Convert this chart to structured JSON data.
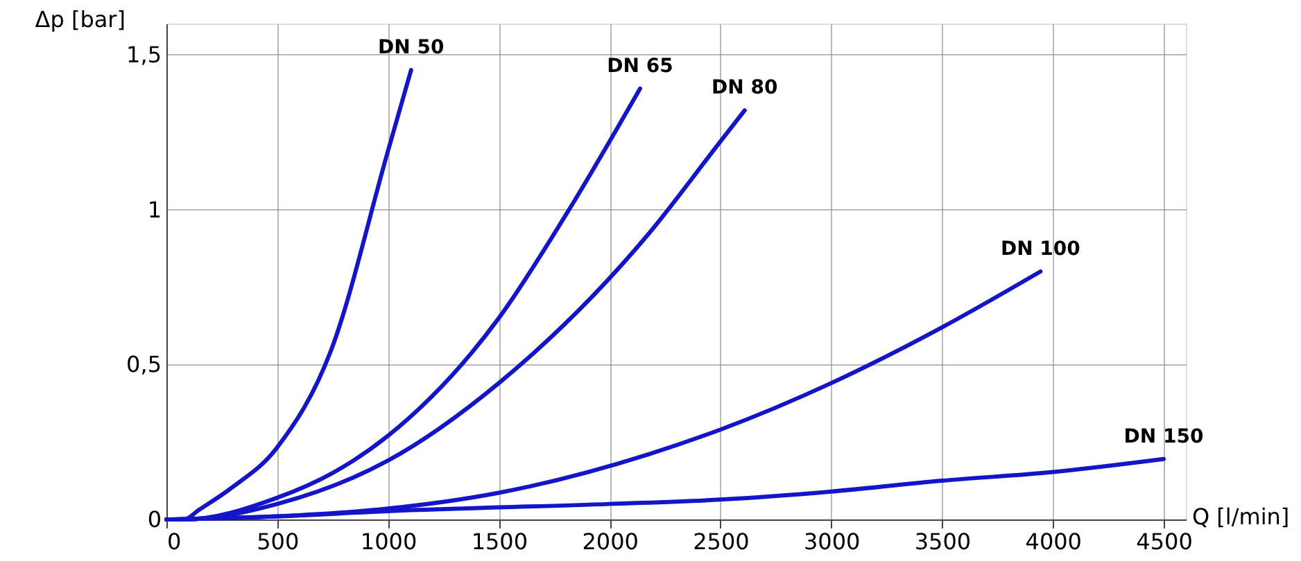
{
  "chart_data": {
    "type": "line",
    "xlabel": "Q [l/min]",
    "ylabel": "Δp [bar]",
    "xlim": [
      0,
      4600
    ],
    "ylim": [
      0,
      1.6
    ],
    "xticks": [
      0,
      500,
      1000,
      1500,
      2000,
      2500,
      3000,
      3500,
      4000,
      4500
    ],
    "yticks": [
      0,
      {
        "value": 0.5,
        "label": "0,5"
      },
      1,
      {
        "value": 1.5,
        "label": "1,5"
      }
    ],
    "grid": true,
    "line_style": "solid",
    "series": [
      {
        "name": "DN 50",
        "color": "#1414c8",
        "x": [
          0,
          80,
          145,
          290,
          497,
          745,
          1000,
          1104
        ],
        "values": [
          0,
          0,
          0.03,
          0.1,
          0.23,
          0.55,
          1.19,
          1.45
        ]
      },
      {
        "name": "DN 65",
        "color": "#1414c8",
        "x": [
          0,
          80,
          500,
          750,
          1000,
          1500,
          1800,
          2137
        ],
        "values": [
          0,
          0,
          0.07,
          0.15,
          0.27,
          0.65,
          0.98,
          1.39
        ]
      },
      {
        "name": "DN 80",
        "color": "#1414c8",
        "x": [
          0,
          80,
          500,
          1000,
          1500,
          2174,
          2500,
          2609
        ],
        "values": [
          0,
          0,
          0.05,
          0.19,
          0.44,
          0.92,
          1.22,
          1.32
        ]
      },
      {
        "name": "DN 100",
        "color": "#1414c8",
        "x": [
          0,
          500,
          1000,
          1500,
          2174,
          2500,
          3000,
          3500,
          3944
        ],
        "values": [
          0,
          0.01,
          0.035,
          0.086,
          0.21,
          0.29,
          0.44,
          0.62,
          0.8
        ]
      },
      {
        "name": "DN 150",
        "color": "#1414c8",
        "x": [
          0,
          500,
          1000,
          2000,
          2500,
          3000,
          3500,
          4000,
          4500
        ],
        "values": [
          0,
          0.01,
          0.027,
          0.05,
          0.064,
          0.09,
          0.125,
          0.153,
          0.195
        ]
      }
    ]
  }
}
